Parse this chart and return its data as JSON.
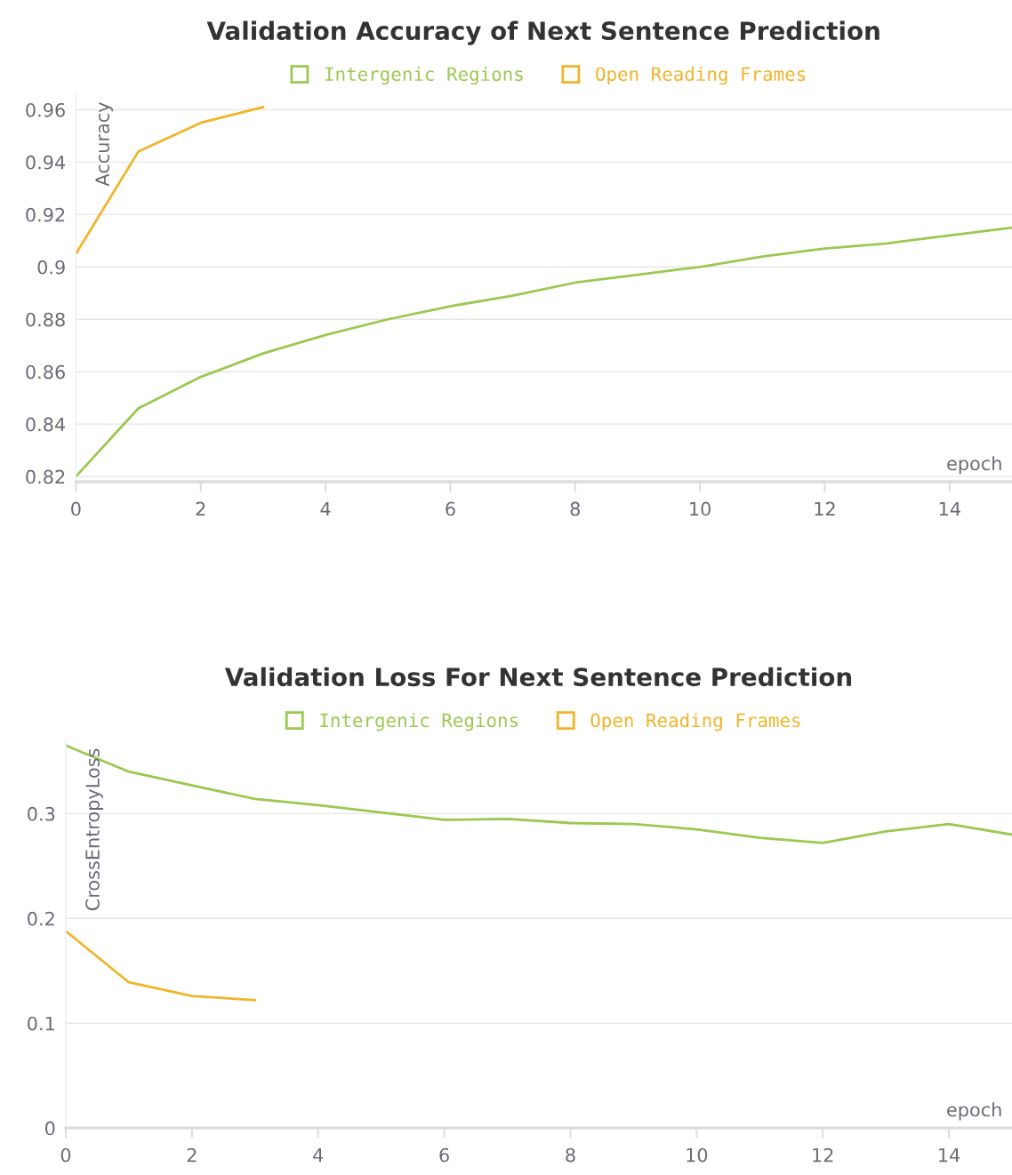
{
  "chart_data": [
    {
      "type": "line",
      "title": "Validation Accuracy of Next Sentence Prediction",
      "xlabel": "epoch",
      "ylabel": "Accuracy",
      "xlim": [
        0,
        15
      ],
      "ylim": [
        0.818,
        0.966
      ],
      "xticks": [
        0,
        2,
        4,
        6,
        8,
        10,
        12,
        14
      ],
      "yticks": [
        0.82,
        0.84,
        0.86,
        0.88,
        0.9,
        0.92,
        0.94,
        0.96
      ],
      "grid": "y",
      "legend": "top",
      "series": [
        {
          "name": "Intergenic Regions",
          "color": "#9bc850",
          "x": [
            0,
            1,
            2,
            3,
            4,
            5,
            6,
            7,
            8,
            9,
            10,
            11,
            12,
            13,
            14,
            15
          ],
          "values": [
            0.82,
            0.846,
            0.858,
            0.867,
            0.874,
            0.88,
            0.885,
            0.889,
            0.894,
            0.897,
            0.9,
            0.904,
            0.907,
            0.909,
            0.912,
            0.915
          ]
        },
        {
          "name": "Open Reading Frames",
          "color": "#f0b429",
          "x": [
            0,
            1,
            2,
            3
          ],
          "values": [
            0.905,
            0.944,
            0.955,
            0.961
          ]
        }
      ]
    },
    {
      "type": "line",
      "title": "Validation Loss For Next Sentence Prediction",
      "xlabel": "epoch",
      "ylabel": "CrossEntropyLoss",
      "xlim": [
        0,
        15
      ],
      "ylim": [
        0,
        0.37
      ],
      "xticks": [
        0,
        2,
        4,
        6,
        8,
        10,
        12,
        14
      ],
      "yticks": [
        0,
        0.1,
        0.2,
        0.3
      ],
      "grid": "y",
      "legend": "top",
      "series": [
        {
          "name": "Intergenic Regions",
          "color": "#9bc850",
          "x": [
            0,
            1,
            2,
            3,
            4,
            5,
            6,
            7,
            8,
            9,
            10,
            11,
            12,
            13,
            14,
            15
          ],
          "values": [
            0.365,
            0.34,
            0.327,
            0.314,
            0.308,
            0.301,
            0.294,
            0.295,
            0.291,
            0.29,
            0.285,
            0.277,
            0.272,
            0.283,
            0.29,
            0.28
          ]
        },
        {
          "name": "Open Reading Frames",
          "color": "#f0b429",
          "x": [
            0,
            1,
            2,
            3
          ],
          "values": [
            0.188,
            0.139,
            0.126,
            0.122
          ]
        }
      ]
    }
  ]
}
